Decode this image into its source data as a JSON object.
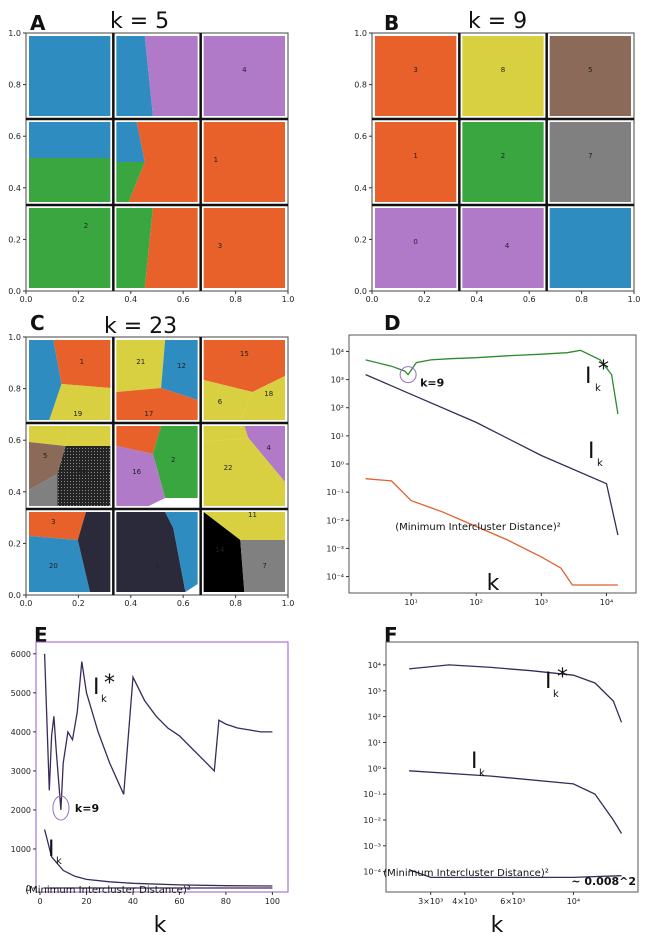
{
  "chart_data": [
    {
      "panel": "A",
      "type": "cluster-map",
      "title": "k = 5",
      "xlim": [
        0,
        1
      ],
      "ylim": [
        0,
        1
      ],
      "xticks": [
        "0.0",
        "0.2",
        "0.4",
        "0.6",
        "0.8",
        "1.0"
      ],
      "yticks": [
        "0.0",
        "0.2",
        "0.4",
        "0.6",
        "0.8",
        "1.0"
      ],
      "cluster_labels": [
        "4",
        "1",
        "2",
        "3"
      ]
    },
    {
      "panel": "B",
      "type": "cluster-map",
      "title": "k = 9",
      "xlim": [
        0,
        1
      ],
      "ylim": [
        0,
        1
      ],
      "xticks": [
        "0.0",
        "0.2",
        "0.4",
        "0.6",
        "0.8",
        "1.0"
      ],
      "yticks": [
        "0.0",
        "0.2",
        "0.4",
        "0.6",
        "0.8",
        "1.0"
      ],
      "cluster_labels": [
        "3",
        "8",
        "5",
        "1",
        "2",
        "7",
        "0",
        "4"
      ]
    },
    {
      "panel": "C",
      "type": "cluster-map",
      "title": "k = 23",
      "xlim": [
        0,
        1
      ],
      "ylim": [
        0,
        1
      ],
      "xticks": [
        "0.0",
        "0.2",
        "0.4",
        "0.6",
        "0.8",
        "1.0"
      ],
      "yticks": [
        "0.0",
        "0.2",
        "0.4",
        "0.6",
        "0.8",
        "1.0"
      ],
      "cluster_labels": [
        "1",
        "21",
        "12",
        "15",
        "19",
        "17",
        "18",
        "6",
        "5",
        "2",
        "16",
        "22",
        "4",
        "3",
        "20",
        "11",
        "14",
        "7"
      ]
    },
    {
      "panel": "D",
      "type": "line",
      "yscale": "log",
      "xscale": "log",
      "xlabel": "k",
      "xticks": [
        "10¹",
        "10²",
        "10³",
        "10⁴"
      ],
      "yticks": [
        "10⁴",
        "10³",
        "10²",
        "10¹",
        "10⁰",
        "10⁻¹",
        "10⁻²",
        "10⁻³",
        "10⁻⁴"
      ],
      "series": [
        {
          "name": "I_k*",
          "x": [
            2,
            5,
            8,
            9,
            12,
            20,
            40,
            100,
            300,
            1000,
            2500,
            4000,
            8000,
            12000,
            15000
          ],
          "y": [
            5000,
            3000,
            2000,
            1500,
            4000,
            5000,
            5500,
            6000,
            7000,
            8000,
            9000,
            11000,
            5000,
            1500,
            60
          ]
        },
        {
          "name": "I_k",
          "x": [
            2,
            5,
            10,
            100,
            1000,
            10000,
            15000
          ],
          "y": [
            1500,
            600,
            300,
            30,
            2,
            0.2,
            0.003
          ]
        },
        {
          "name": "(Minimum Intercluster Distance)²",
          "x": [
            2,
            5,
            10,
            30,
            100,
            300,
            1000,
            2000,
            3000,
            10000,
            15000
          ],
          "y": [
            0.3,
            0.25,
            0.05,
            0.02,
            0.006,
            0.002,
            0.0005,
            0.0002,
            5e-05,
            5e-05,
            5e-05
          ]
        }
      ],
      "annotation": "k=9"
    },
    {
      "panel": "E",
      "type": "line",
      "xlabel": "k",
      "xlim": [
        0,
        105
      ],
      "ylim": [
        0,
        6200
      ],
      "xticks": [
        "0",
        "20",
        "40",
        "60",
        "80",
        "100"
      ],
      "yticks": [
        "0",
        "1000",
        "2000",
        "3000",
        "4000",
        "5000",
        "6000"
      ],
      "series": [
        {
          "name": "I_k*",
          "x": [
            2,
            4,
            5,
            6,
            7,
            9,
            10,
            12,
            14,
            16,
            18,
            20,
            25,
            30,
            36,
            40,
            45,
            50,
            55,
            60,
            65,
            70,
            75,
            77,
            80,
            85,
            90,
            95,
            100
          ],
          "y": [
            6000,
            2500,
            3900,
            4400,
            3500,
            2000,
            3200,
            4000,
            3800,
            4500,
            5800,
            5000,
            4000,
            3200,
            2400,
            5400,
            4800,
            4400,
            4100,
            3900,
            3600,
            3300,
            3000,
            4300,
            4200,
            4100,
            4050,
            4000,
            4000
          ]
        },
        {
          "name": "I_k",
          "x": [
            2,
            5,
            10,
            15,
            20,
            30,
            40,
            60,
            80,
            100
          ],
          "y": [
            1500,
            800,
            450,
            300,
            220,
            160,
            120,
            80,
            60,
            50
          ]
        },
        {
          "name": "(Minimum Intercluster Distance)²",
          "x": [
            2,
            100
          ],
          "y": [
            0,
            0
          ]
        }
      ],
      "annotation": "k=9"
    },
    {
      "panel": "F",
      "type": "line",
      "yscale": "log",
      "xscale": "log",
      "xlabel": "k",
      "xticks": [
        "3×10³",
        "4×10³",
        "6×10³",
        "10⁴"
      ],
      "yticks": [
        "10⁴",
        "10³",
        "10²",
        "10¹",
        "10⁰",
        "10⁻¹",
        "10⁻²",
        "10⁻³",
        "10⁻⁴"
      ],
      "series": [
        {
          "name": "I_k*",
          "x": [
            2500,
            3500,
            5000,
            7000,
            10000,
            12000,
            14000,
            15000
          ],
          "y": [
            7000,
            10000,
            8000,
            6000,
            4000,
            2000,
            400,
            60
          ]
        },
        {
          "name": "I_k",
          "x": [
            2500,
            5000,
            10000,
            12000,
            14000,
            15000
          ],
          "y": [
            0.8,
            0.5,
            0.25,
            0.1,
            0.01,
            0.003
          ]
        },
        {
          "name": "(Minimum Intercluster Distance)²",
          "x": [
            2500,
            3000,
            5000,
            10000,
            15000
          ],
          "y": [
            0.00012,
            6e-05,
            6e-05,
            6e-05,
            7e-05
          ]
        }
      ],
      "annotation": "~ 0.008^2"
    }
  ],
  "panels": {
    "A": {
      "letter": "A",
      "title": "k = 5"
    },
    "B": {
      "letter": "B",
      "title": "k = 9"
    },
    "C": {
      "letter": "C",
      "title": "k = 23"
    },
    "D": {
      "letter": "D",
      "xlabel": "k",
      "annotation": "k=9",
      "dist_label": "(Minimum Intercluster Distance)²"
    },
    "E": {
      "letter": "E",
      "xlabel": "k",
      "annotation": "k=9",
      "dist_label": "(Minimum Intercluster Distance)²"
    },
    "F": {
      "letter": "F",
      "xlabel": "k",
      "dist_label": "(Minimum Intercluster Distance)²",
      "approx": "~ 0.008^2"
    }
  },
  "colors": {
    "blue": "#2e8cc0",
    "purple": "#b07ac8",
    "orange": "#e8602a",
    "green": "#3aa640",
    "yellow": "#d8d040",
    "brown": "#8c6a5a",
    "gray": "#808080",
    "dark": "#2a2a3a",
    "line_main": "#3a2a5a",
    "line_green": "#2e8a2e",
    "line_orange": "#e06030",
    "frame_purple": "#9a5ac8"
  }
}
